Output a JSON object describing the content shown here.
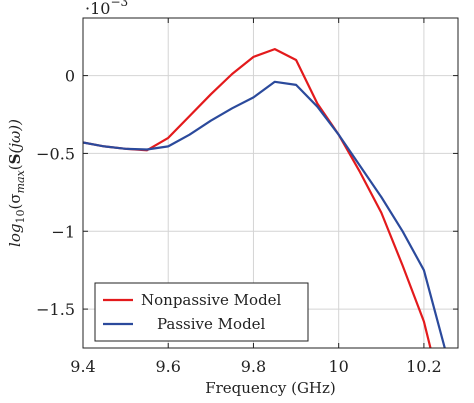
{
  "chart_data": {
    "type": "line",
    "xlabel": "Frequency (GHz)",
    "ylabel_parts": [
      "log",
      "10",
      "(σ",
      "max",
      "(",
      "S",
      "(jω))"
    ],
    "scale_label": "·10",
    "scale_exponent": "−3",
    "xlim": [
      9.4,
      10.28
    ],
    "ylim": [
      -1.75,
      0.37
    ],
    "grid": true,
    "legend_position": "bottom-left",
    "x_ticks": [
      {
        "value": 9.4,
        "label": "9.4"
      },
      {
        "value": 9.6,
        "label": "9.6"
      },
      {
        "value": 9.8,
        "label": "9.8"
      },
      {
        "value": 10.0,
        "label": "10"
      },
      {
        "value": 10.2,
        "label": "10.2"
      }
    ],
    "y_ticks": [
      {
        "value": 0,
        "label": "0"
      },
      {
        "value": -0.5,
        "label": "−0.5"
      },
      {
        "value": -1.0,
        "label": "−1"
      },
      {
        "value": -1.5,
        "label": "−1.5"
      }
    ],
    "series": [
      {
        "name": "Nonpassive Model",
        "color": "#e31a1c",
        "x": [
          9.4,
          9.45,
          9.5,
          9.55,
          9.6,
          9.65,
          9.7,
          9.75,
          9.8,
          9.85,
          9.9,
          9.95,
          10.0,
          10.05,
          10.1,
          10.15,
          10.2,
          10.22
        ],
        "y": [
          -0.43,
          -0.455,
          -0.47,
          -0.48,
          -0.4,
          -0.26,
          -0.12,
          0.01,
          0.12,
          0.17,
          0.1,
          -0.18,
          -0.38,
          -0.62,
          -0.88,
          -1.22,
          -1.58,
          -1.8
        ]
      },
      {
        "name": "Passive Model",
        "color": "#2b4a9c",
        "x": [
          9.4,
          9.45,
          9.5,
          9.55,
          9.6,
          9.65,
          9.7,
          9.75,
          9.8,
          9.85,
          9.9,
          9.95,
          10.0,
          10.05,
          10.1,
          10.15,
          10.2,
          10.25
        ],
        "y": [
          -0.43,
          -0.455,
          -0.47,
          -0.475,
          -0.455,
          -0.38,
          -0.29,
          -0.21,
          -0.14,
          -0.04,
          -0.06,
          -0.2,
          -0.38,
          -0.58,
          -0.78,
          -1.0,
          -1.25,
          -1.76
        ]
      }
    ]
  }
}
